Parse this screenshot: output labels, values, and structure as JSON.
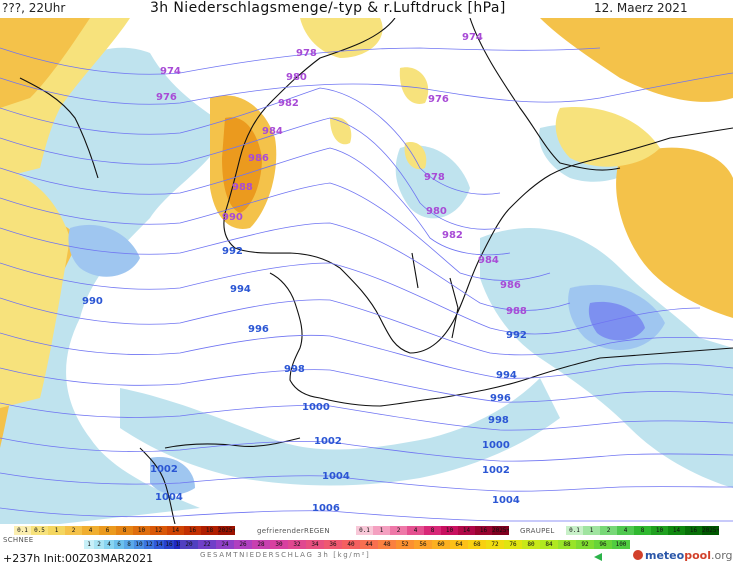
{
  "header": {
    "left": "???, 22Uhr",
    "title": "3h Niederschlagsmenge/-typ & r.Luftdruck [hPa]",
    "date": "12. Maerz 2021"
  },
  "map": {
    "colors": {
      "ocean": "#ffffff",
      "rain_light": "#f7e27c",
      "rain_medium": "#f4c24a",
      "rain_heavy": "#eb9a1e",
      "snow_light": "#bfe3ee",
      "snow_medium": "#9fc6f0",
      "snow_heavy": "#7d90f0",
      "isobar": "#6f74f2",
      "isobar_label_north": "#a84bd6",
      "isobar_label_south": "#2b56d4",
      "coast": "#111111"
    },
    "isobar_labels_north": [
      "974",
      "976",
      "978",
      "980",
      "982",
      "984",
      "986",
      "988",
      "990",
      "974",
      "976",
      "978",
      "980",
      "982",
      "984",
      "986",
      "988"
    ],
    "isobar_labels_south": [
      "992",
      "994",
      "996",
      "998",
      "1000",
      "1002",
      "1004",
      "1006",
      "990",
      "992",
      "994",
      "996",
      "998",
      "1000",
      "1002",
      "1004",
      "1002",
      "1004"
    ]
  },
  "legend": {
    "rain_title": "",
    "freezing_title": "gefrierenderREGEN",
    "graupel_title": "GRAUPEL",
    "snow_title": "SCHNEE",
    "sum_title": "GESAMTNIEDERSCHLAG 3h [kg/m²]",
    "rain_values": [
      "0.1",
      "0.5",
      "1",
      "2",
      "4",
      "6",
      "8",
      "10",
      "12",
      "14",
      "16",
      "18",
      "2025+"
    ],
    "freezing_values": [
      "0.1",
      "1",
      "2",
      "4",
      "8",
      "10",
      "14",
      "16",
      "2025+"
    ],
    "graupel_values": [
      "0.1",
      "1",
      "2",
      "4",
      "8",
      "10",
      "14",
      "16",
      "2025+"
    ],
    "snow_values": [
      "1",
      "2",
      "4",
      "6",
      "8",
      "10",
      "12",
      "14",
      "16",
      "18"
    ],
    "sum_values": [
      "20",
      "22",
      "24",
      "26",
      "28",
      "30",
      "32",
      "34",
      "36",
      "40",
      "44",
      "48",
      "52",
      "56",
      "60",
      "64",
      "68",
      "72",
      "76",
      "80",
      "84",
      "88",
      "92",
      "96",
      "100"
    ]
  },
  "footer": {
    "init": "+237h  Init:00Z03MAR2021",
    "logo_a": "meteo",
    "logo_b": "pool",
    "logo_c": ".org"
  }
}
